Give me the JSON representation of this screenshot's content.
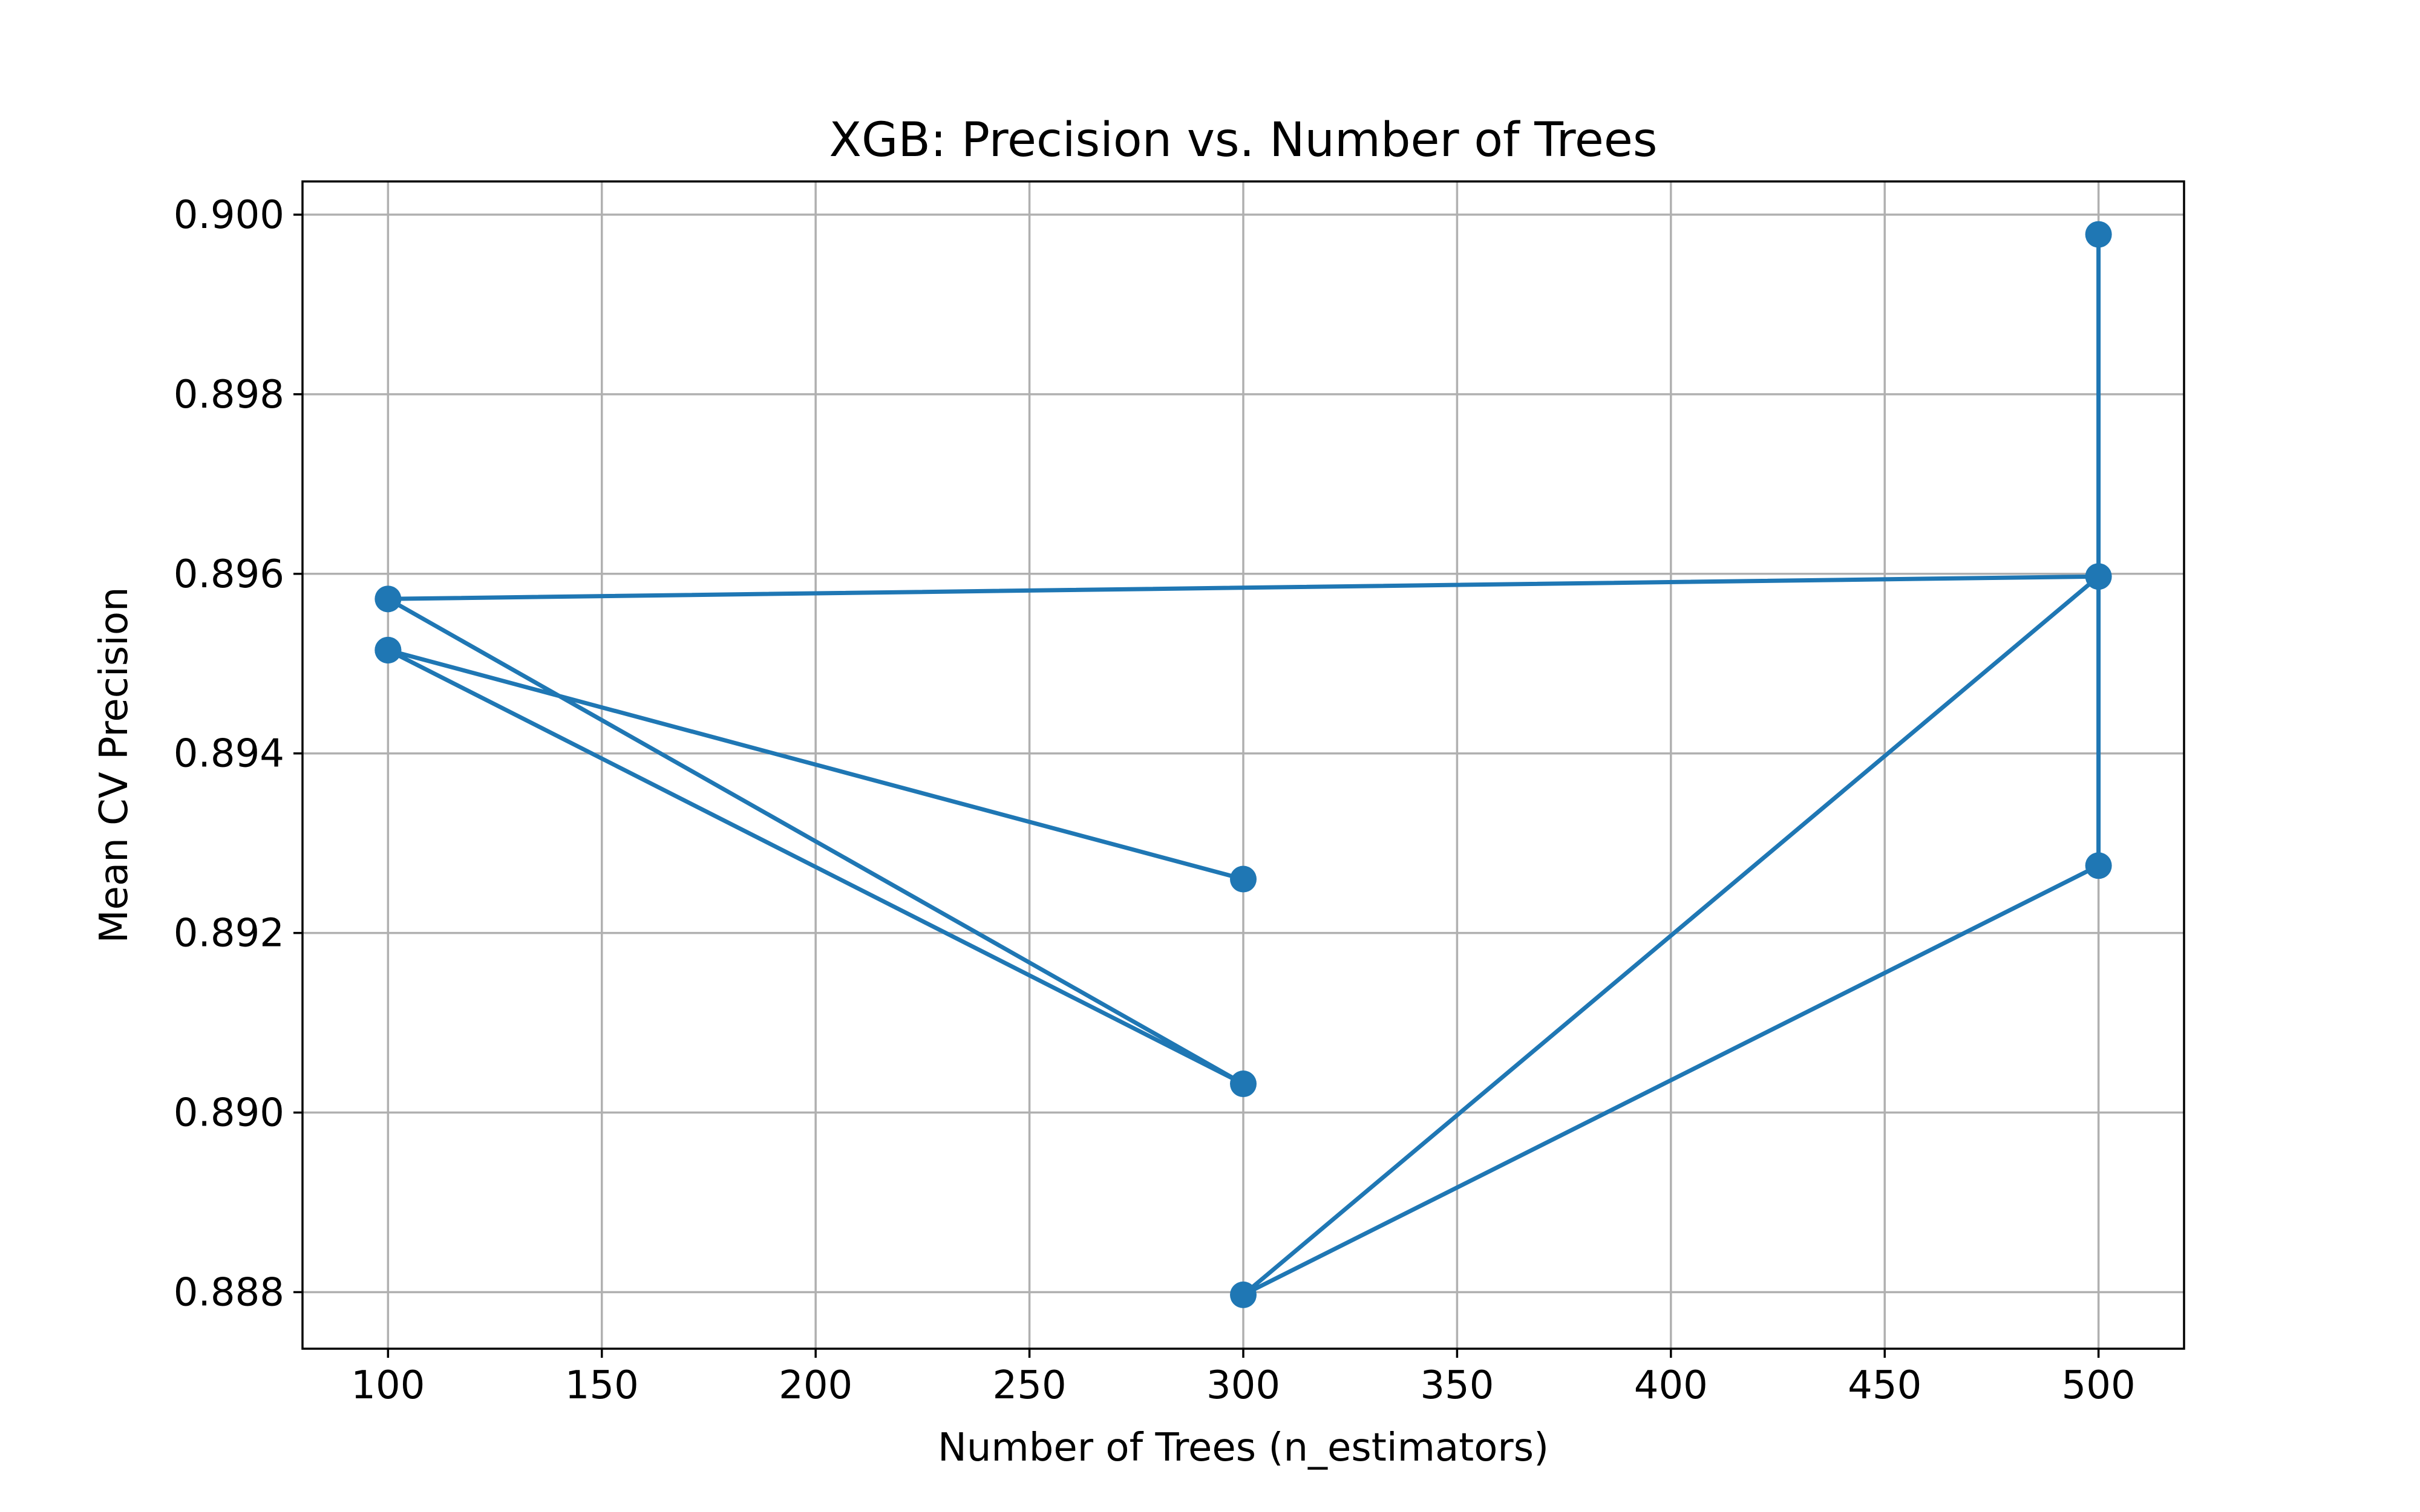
{
  "chart_data": {
    "type": "line",
    "title": "XGB: Precision vs. Number of Trees",
    "xlabel": "Number of Trees (n_estimators)",
    "ylabel": "Mean CV Precision",
    "xlim": [
      80,
      520
    ],
    "ylim": [
      0.88737,
      0.90037
    ],
    "xticks": [
      100,
      150,
      200,
      250,
      300,
      350,
      400,
      450,
      500
    ],
    "xtick_labels": [
      "100",
      "150",
      "200",
      "250",
      "300",
      "350",
      "400",
      "450",
      "500"
    ],
    "yticks": [
      0.888,
      0.89,
      0.892,
      0.894,
      0.896,
      0.898,
      0.9
    ],
    "ytick_labels": [
      "0.888",
      "0.890",
      "0.892",
      "0.894",
      "0.896",
      "0.898",
      "0.900"
    ],
    "grid": true,
    "marker": "circle",
    "series": [
      {
        "color": "#1f77b4",
        "x": [
          100,
          100,
          300,
          100,
          500,
          500,
          300,
          500,
          300
        ],
        "y": [
          0.89515,
          0.89515,
          0.8926,
          0.89572,
          0.89597,
          0.89978,
          0.88797,
          0.89275,
          0.89032
        ],
        "path": [
          [
            300,
            0.8926
          ],
          [
            100,
            0.89515
          ],
          [
            300,
            0.89032
          ],
          [
            100,
            0.89572
          ],
          [
            500,
            0.89597
          ],
          [
            500,
            0.89978
          ],
          [
            500,
            0.89597
          ],
          [
            300,
            0.88797
          ],
          [
            500,
            0.89275
          ],
          [
            500,
            0.89597
          ]
        ]
      }
    ]
  }
}
